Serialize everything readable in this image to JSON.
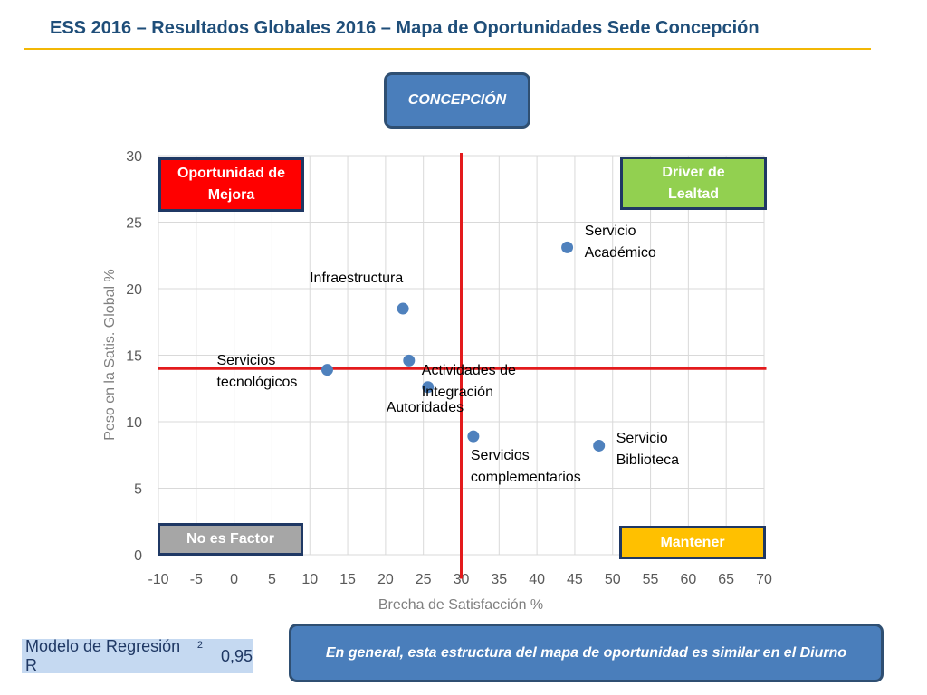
{
  "header": {
    "title": "ESS 2016 – Resultados Globales 2016 – Mapa de Oportunidades Sede Concepción"
  },
  "region_label": "CONCEPCIÓN",
  "quadrants": {
    "top_left": [
      "Oportunidad de",
      "Mejora"
    ],
    "top_right": [
      "Driver de",
      "Lealtad"
    ],
    "bottom_left": "No es Factor",
    "bottom_right": "Mantener"
  },
  "model": {
    "label": "Modelo de Regresión R",
    "superscript": "2",
    "value": "0,95"
  },
  "note": "En general, esta estructura del mapa de oportunidad es similar en el Diurno",
  "colors": {
    "title": "#1f4e79",
    "accent_rule": "#f2b705",
    "point": "#4f81bd",
    "threshold_line": "#e31a1c",
    "opportunity": "#ff0000",
    "driver": "#92d050",
    "no_factor": "#a6a6a6",
    "maintain": "#ffc000",
    "callout": "#4a7ebb"
  },
  "chart_data": {
    "type": "scatter",
    "xlabel": "Brecha de Satisfacción %",
    "ylabel": "Peso en la Satis. Global %",
    "xlim": [
      -10,
      70
    ],
    "ylim": [
      0,
      30
    ],
    "xticks": [
      -10,
      -5,
      0,
      5,
      10,
      15,
      20,
      25,
      30,
      35,
      40,
      45,
      50,
      55,
      60,
      65,
      70
    ],
    "yticks": [
      0,
      5,
      10,
      15,
      20,
      25,
      30
    ],
    "grid": true,
    "points": [
      {
        "label": [
          "Servicio",
          "Académico"
        ],
        "x": 44.0,
        "y": 23.1
      },
      {
        "label": [
          "Infraestructura"
        ],
        "x": 22.3,
        "y": 18.5
      },
      {
        "label": [
          "Actividades de",
          "Integración"
        ],
        "x": 23.1,
        "y": 14.6
      },
      {
        "label": [
          "Servicios",
          "tecnológicos"
        ],
        "x": 12.3,
        "y": 13.9
      },
      {
        "label": [
          "Autoridades"
        ],
        "x": 25.6,
        "y": 12.6
      },
      {
        "label": [
          "Servicios",
          "complementarios"
        ],
        "x": 31.6,
        "y": 8.9
      },
      {
        "label": [
          "Servicio",
          "Biblioteca"
        ],
        "x": 48.2,
        "y": 8.2
      }
    ],
    "reference_lines": {
      "x": 30,
      "y": 14
    }
  }
}
